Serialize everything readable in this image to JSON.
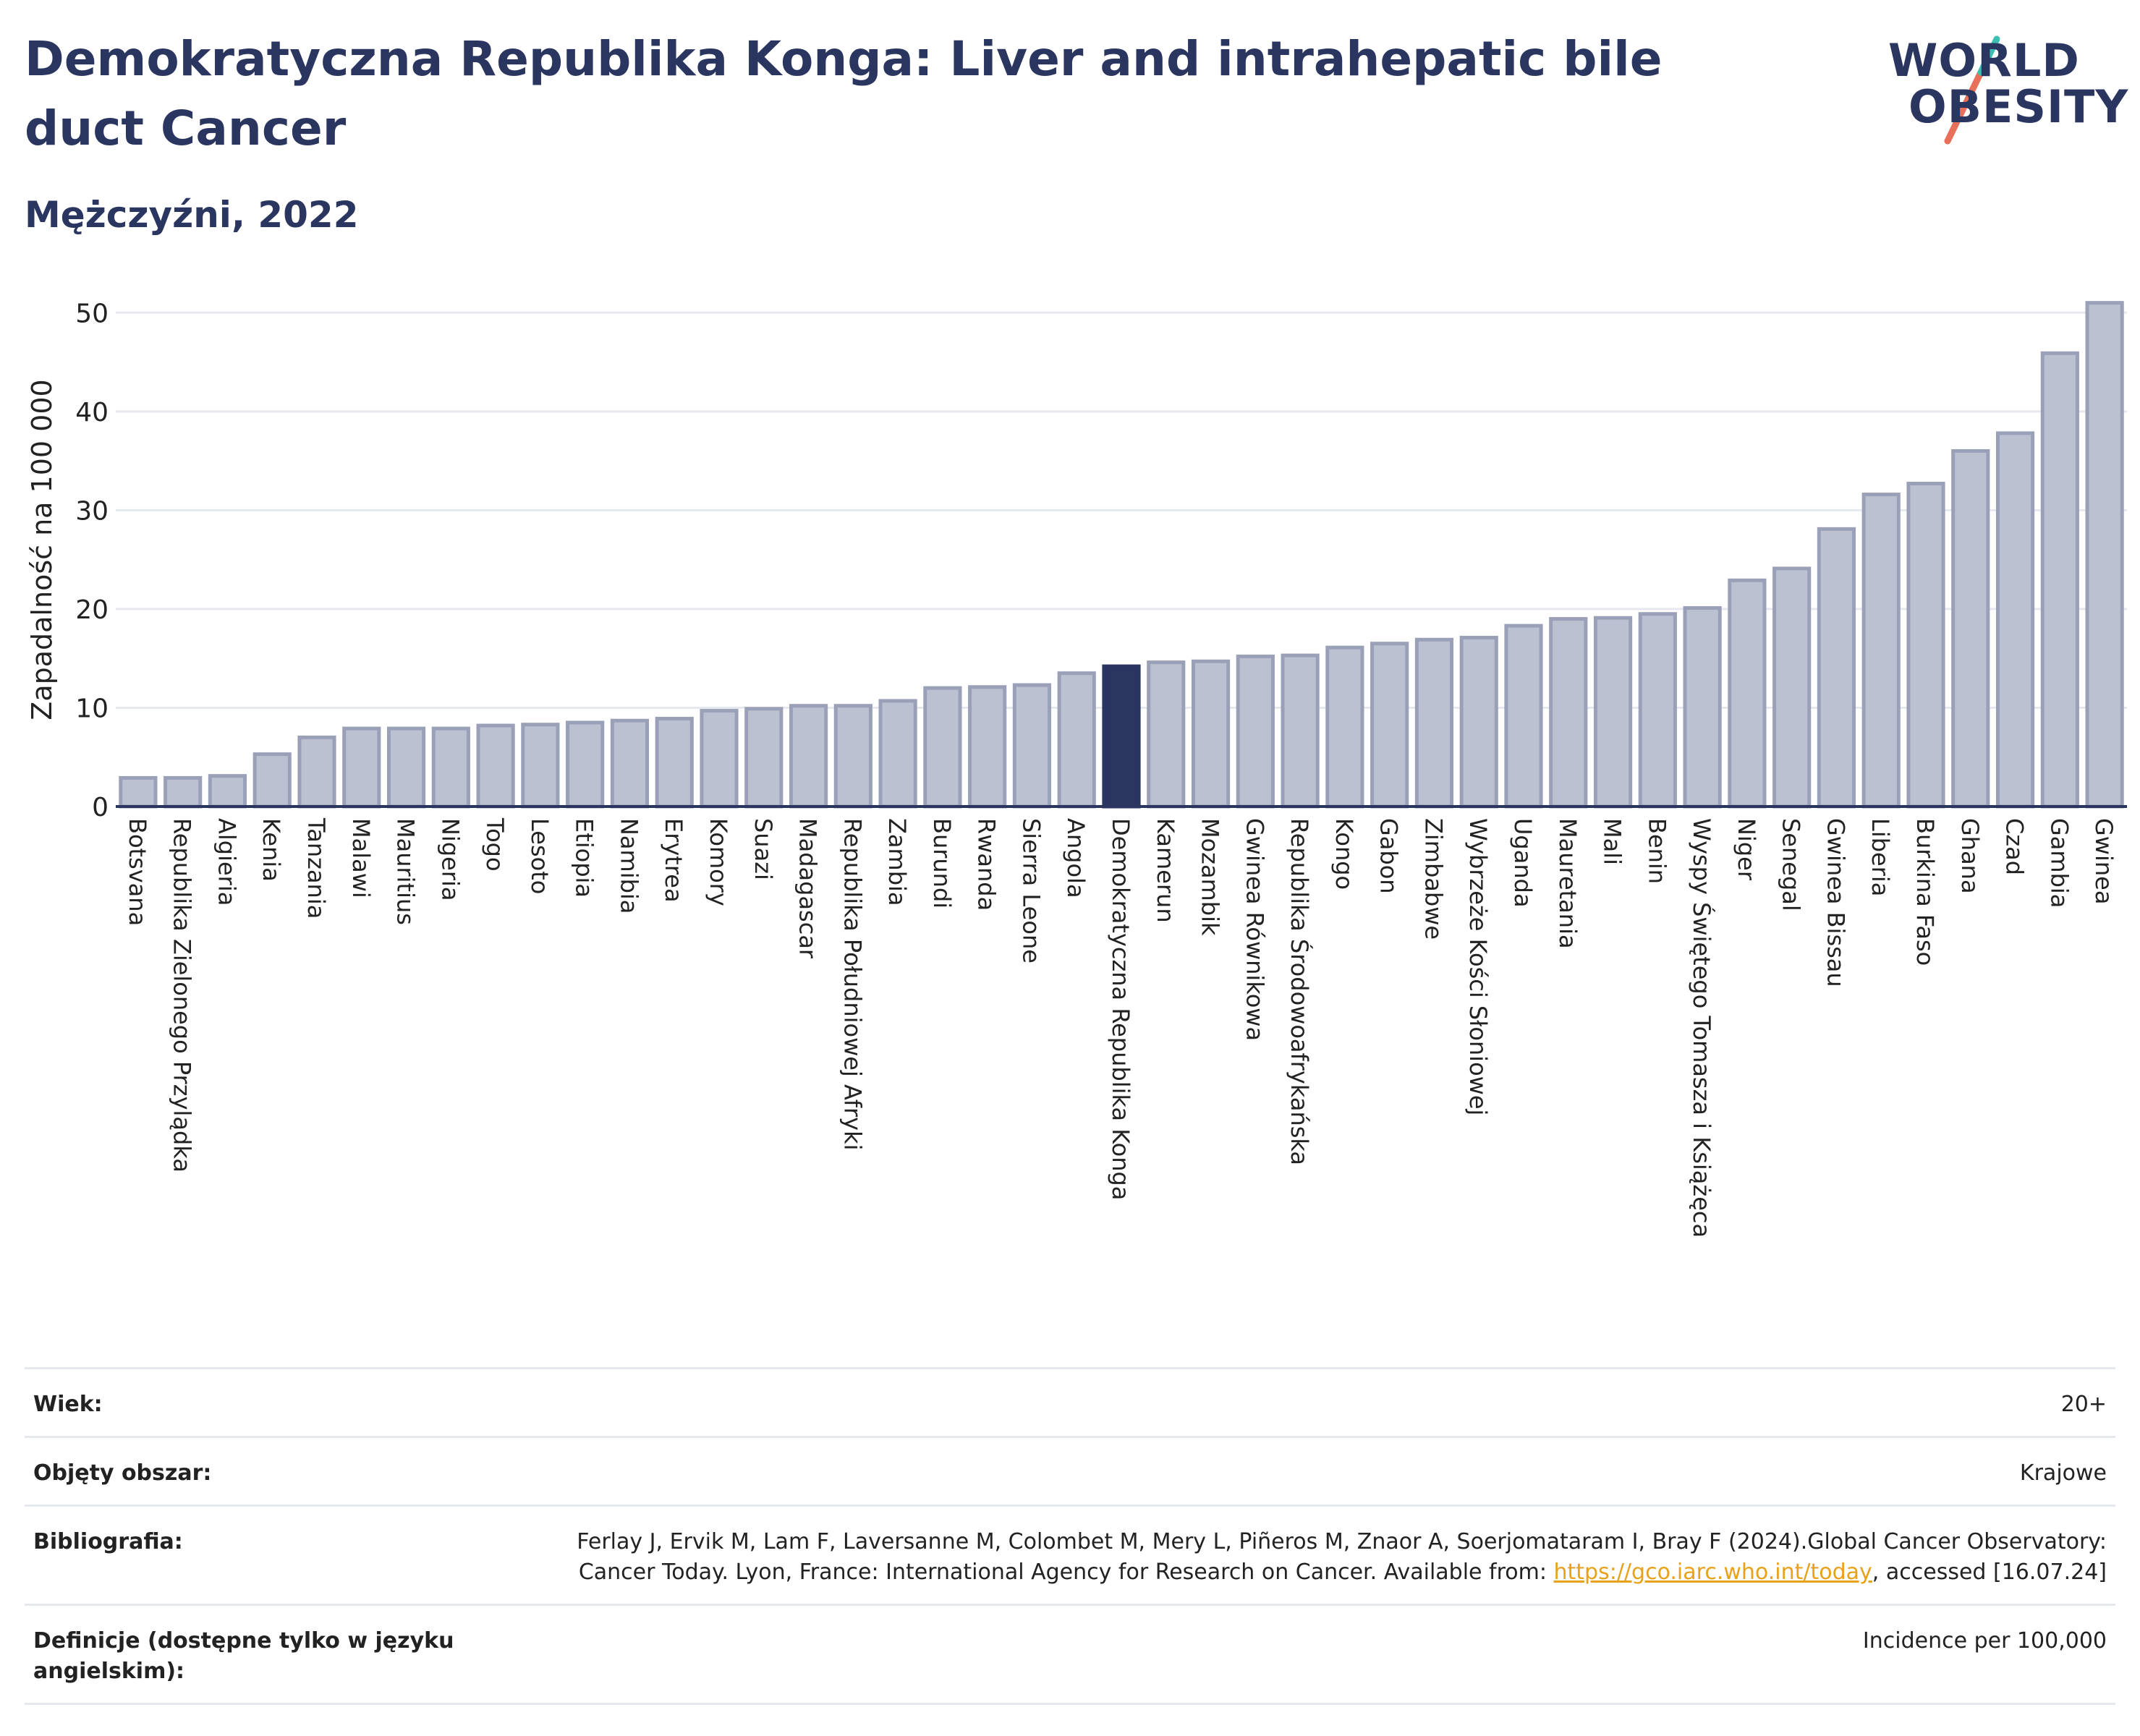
{
  "title": "Demokratyczna Republika Konga: Liver and intrahepatic bile duct Cancer",
  "subtitle": "Mężczyźni, 2022",
  "logo": {
    "line1": "WORLD",
    "line2": "OBESITY"
  },
  "colors": {
    "bar": "#bcc1d1",
    "bar_edge": "#9aa0b8",
    "highlight": "#2a3560",
    "grid": "#e6e8ef",
    "accent": "#e8a21a"
  },
  "chart_data": {
    "type": "bar",
    "ylabel": "Zapadalność na 100 000",
    "ylim": [
      0,
      52
    ],
    "yticks": [
      0,
      10,
      20,
      30,
      40,
      50
    ],
    "grid": true,
    "highlight": "Demokratyczna Republika Konga",
    "categories": [
      "Botsvana",
      "Republika Zielonego Przylądka",
      "Algieria",
      "Kenia",
      "Tanzania",
      "Malawi",
      "Mauritius",
      "Nigeria",
      "Togo",
      "Lesoto",
      "Etiopia",
      "Namibia",
      "Erytrea",
      "Komory",
      "Suazi",
      "Madagascar",
      "Republika Południowej Afryki",
      "Zambia",
      "Burundi",
      "Rwanda",
      "Sierra Leone",
      "Angola",
      "Demokratyczna Republika Konga",
      "Kamerun",
      "Mozambik",
      "Gwinea Równikowa",
      "Republika Środowoafrykańska",
      "Kongo",
      "Gabon",
      "Zimbabwe",
      "Wybrzeże Kości Słoniowej",
      "Uganda",
      "Mauretania",
      "Mali",
      "Benin",
      "Wyspy Świętego Tomasza i Książęca",
      "Niger",
      "Senegal",
      "Gwinea Bissau",
      "Liberia",
      "Burkina Faso",
      "Ghana",
      "Czad",
      "Gambia",
      "Gwinea"
    ],
    "values": [
      2.9,
      2.9,
      3.1,
      5.3,
      7.0,
      7.9,
      7.9,
      7.9,
      8.2,
      8.3,
      8.5,
      8.7,
      8.9,
      9.7,
      9.9,
      10.2,
      10.2,
      10.7,
      12.0,
      12.1,
      12.3,
      13.5,
      14.2,
      14.6,
      14.7,
      15.2,
      15.3,
      16.1,
      16.5,
      16.9,
      17.1,
      18.3,
      19.0,
      19.1,
      19.5,
      20.1,
      22.9,
      24.1,
      28.1,
      31.6,
      32.7,
      36.0,
      37.8,
      45.9,
      51.0
    ]
  },
  "info": [
    {
      "key": "Wiek:",
      "value": "20+"
    },
    {
      "key": "Objęty obszar:",
      "value": "Krajowe"
    },
    {
      "key": "Bibliografia:",
      "value": "Ferlay J, Ervik M, Lam F, Laversanne M, Colombet M, Mery L, Piñeros M, Znaor A, Soerjomataram I, Bray F (2024).Global Cancer Observatory: Cancer Today. Lyon, France: International Agency for Research on Cancer. Available from: ",
      "link": "https://gco.iarc.who.int/today",
      "value_after": ", accessed [16.07.24]"
    },
    {
      "key": "Definicje (dostępne tylko w języku angielskim):",
      "value": "Incidence per 100,000"
    }
  ]
}
